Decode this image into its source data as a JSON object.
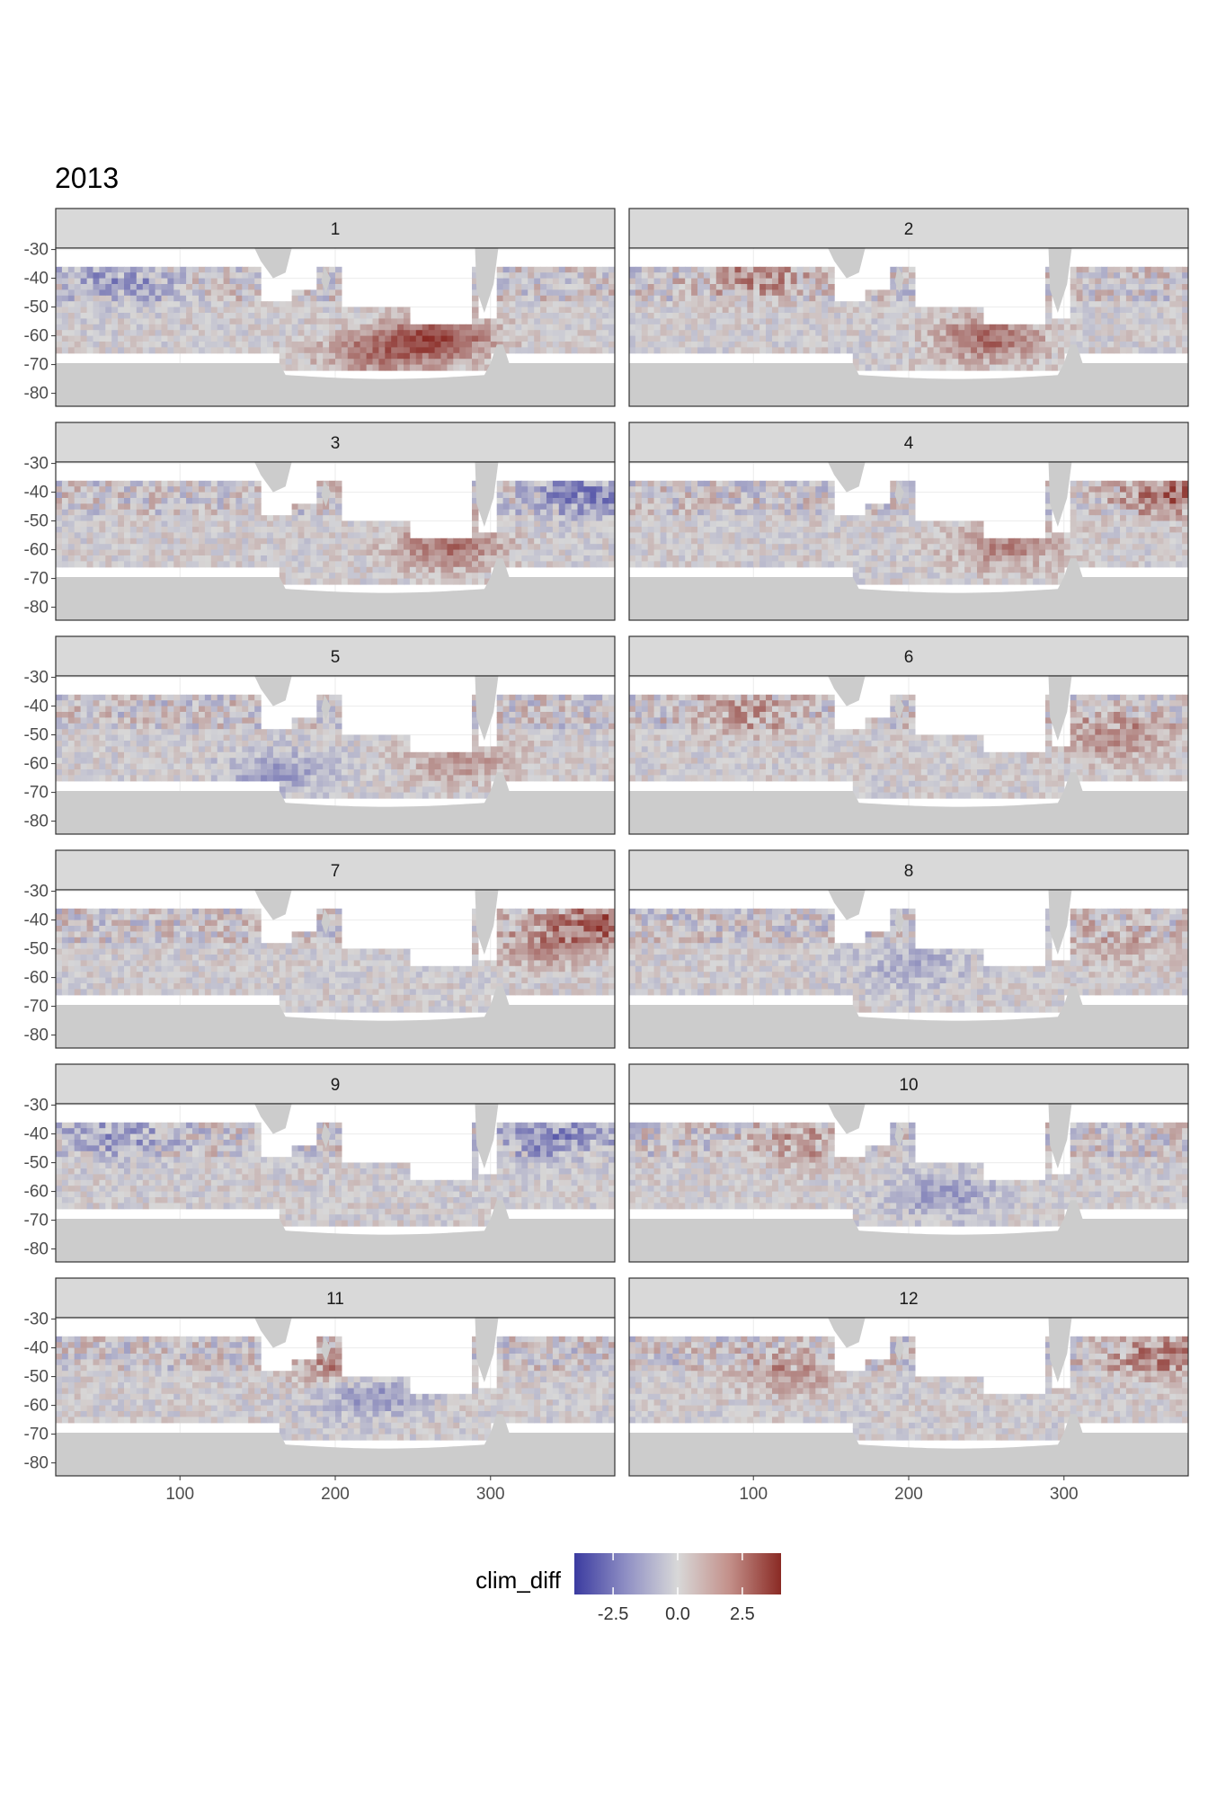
{
  "title": "2013",
  "chart_data": {
    "type": "heatmap",
    "title": "2013",
    "facet_by": "month",
    "facets": [
      "1",
      "2",
      "3",
      "4",
      "5",
      "6",
      "7",
      "8",
      "9",
      "10",
      "11",
      "12"
    ],
    "x_ticks": [
      100,
      200,
      300
    ],
    "y_ticks": [
      -30,
      -40,
      -50,
      -60,
      -70,
      -80
    ],
    "x_range": [
      20,
      380
    ],
    "y_range": [
      -84.5,
      -29.5
    ],
    "fill_variable": "clim_diff",
    "legend": {
      "title": "clim_diff",
      "ticks": [
        -2.5,
        0.0,
        2.5
      ],
      "tick_labels": [
        "-2.5",
        "0.0",
        "2.5"
      ],
      "range": [
        -4,
        4
      ],
      "colors": {
        "low": "#3b3ba0",
        "mid": "#d8d8d8",
        "high": "#8a2a24"
      },
      "placement": "bottom"
    },
    "colors": {
      "land": "#cccccc",
      "ocean_no_data": "#ffffff",
      "panel_border": "#333333",
      "strip_fill": "#d9d9d9"
    },
    "month_pattern": [
      {
        "month": "1",
        "hotspots": [
          {
            "lon": 265,
            "lat": -60,
            "value": 3.2
          },
          {
            "lon": 220,
            "lat": -65,
            "value": 2.0
          },
          {
            "lon": 60,
            "lat": -40,
            "value": -1.5
          }
        ]
      },
      {
        "month": "2",
        "hotspots": [
          {
            "lon": 250,
            "lat": -60,
            "value": 2.5
          },
          {
            "lon": 100,
            "lat": -38,
            "value": 1.8
          }
        ]
      },
      {
        "month": "3",
        "hotspots": [
          {
            "lon": 270,
            "lat": -58,
            "value": 2.4
          },
          {
            "lon": 360,
            "lat": -40,
            "value": -2.0
          }
        ]
      },
      {
        "month": "4",
        "hotspots": [
          {
            "lon": 260,
            "lat": -58,
            "value": 1.8
          },
          {
            "lon": 370,
            "lat": -40,
            "value": 2.5
          }
        ]
      },
      {
        "month": "5",
        "hotspots": [
          {
            "lon": 280,
            "lat": -58,
            "value": 1.6
          },
          {
            "lon": 160,
            "lat": -62,
            "value": -1.5
          }
        ]
      },
      {
        "month": "6",
        "hotspots": [
          {
            "lon": 330,
            "lat": -50,
            "value": 1.8
          },
          {
            "lon": 90,
            "lat": -42,
            "value": 1.5
          }
        ]
      },
      {
        "month": "7",
        "hotspots": [
          {
            "lon": 330,
            "lat": -48,
            "value": 1.6
          },
          {
            "lon": 370,
            "lat": -40,
            "value": 2.6
          }
        ]
      },
      {
        "month": "8",
        "hotspots": [
          {
            "lon": 330,
            "lat": -48,
            "value": 1.0
          },
          {
            "lon": 200,
            "lat": -55,
            "value": -1.2
          }
        ]
      },
      {
        "month": "9",
        "hotspots": [
          {
            "lon": 340,
            "lat": -40,
            "value": -2.0
          },
          {
            "lon": 60,
            "lat": -40,
            "value": -1.4
          }
        ]
      },
      {
        "month": "10",
        "hotspots": [
          {
            "lon": 220,
            "lat": -60,
            "value": -1.6
          },
          {
            "lon": 130,
            "lat": -42,
            "value": 1.2
          }
        ]
      },
      {
        "month": "11",
        "hotspots": [
          {
            "lon": 200,
            "lat": -45,
            "value": 2.0
          },
          {
            "lon": 220,
            "lat": -55,
            "value": -1.8
          }
        ]
      },
      {
        "month": "12",
        "hotspots": [
          {
            "lon": 360,
            "lat": -42,
            "value": 2.0
          },
          {
            "lon": 120,
            "lat": -48,
            "value": 1.4
          }
        ]
      }
    ]
  }
}
